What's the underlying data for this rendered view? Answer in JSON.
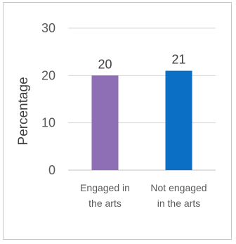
{
  "chart_data": {
    "type": "bar",
    "categories": [
      "Engaged in the arts",
      "Not engaged in the arts"
    ],
    "category_lines": [
      [
        "Engaged in",
        "the arts"
      ],
      [
        "Not engaged",
        "in the arts"
      ]
    ],
    "values": [
      20,
      21
    ],
    "value_labels": [
      "20",
      "21"
    ],
    "bar_colors": [
      "#8e6fb5",
      "#0b6fc6"
    ],
    "ylabel": "Percentage",
    "ylim": [
      0,
      30
    ],
    "yticks": [
      0,
      10,
      20,
      30
    ],
    "ytick_labels": [
      "0",
      "10",
      "20",
      "30"
    ],
    "grid": true,
    "legend": "none"
  }
}
